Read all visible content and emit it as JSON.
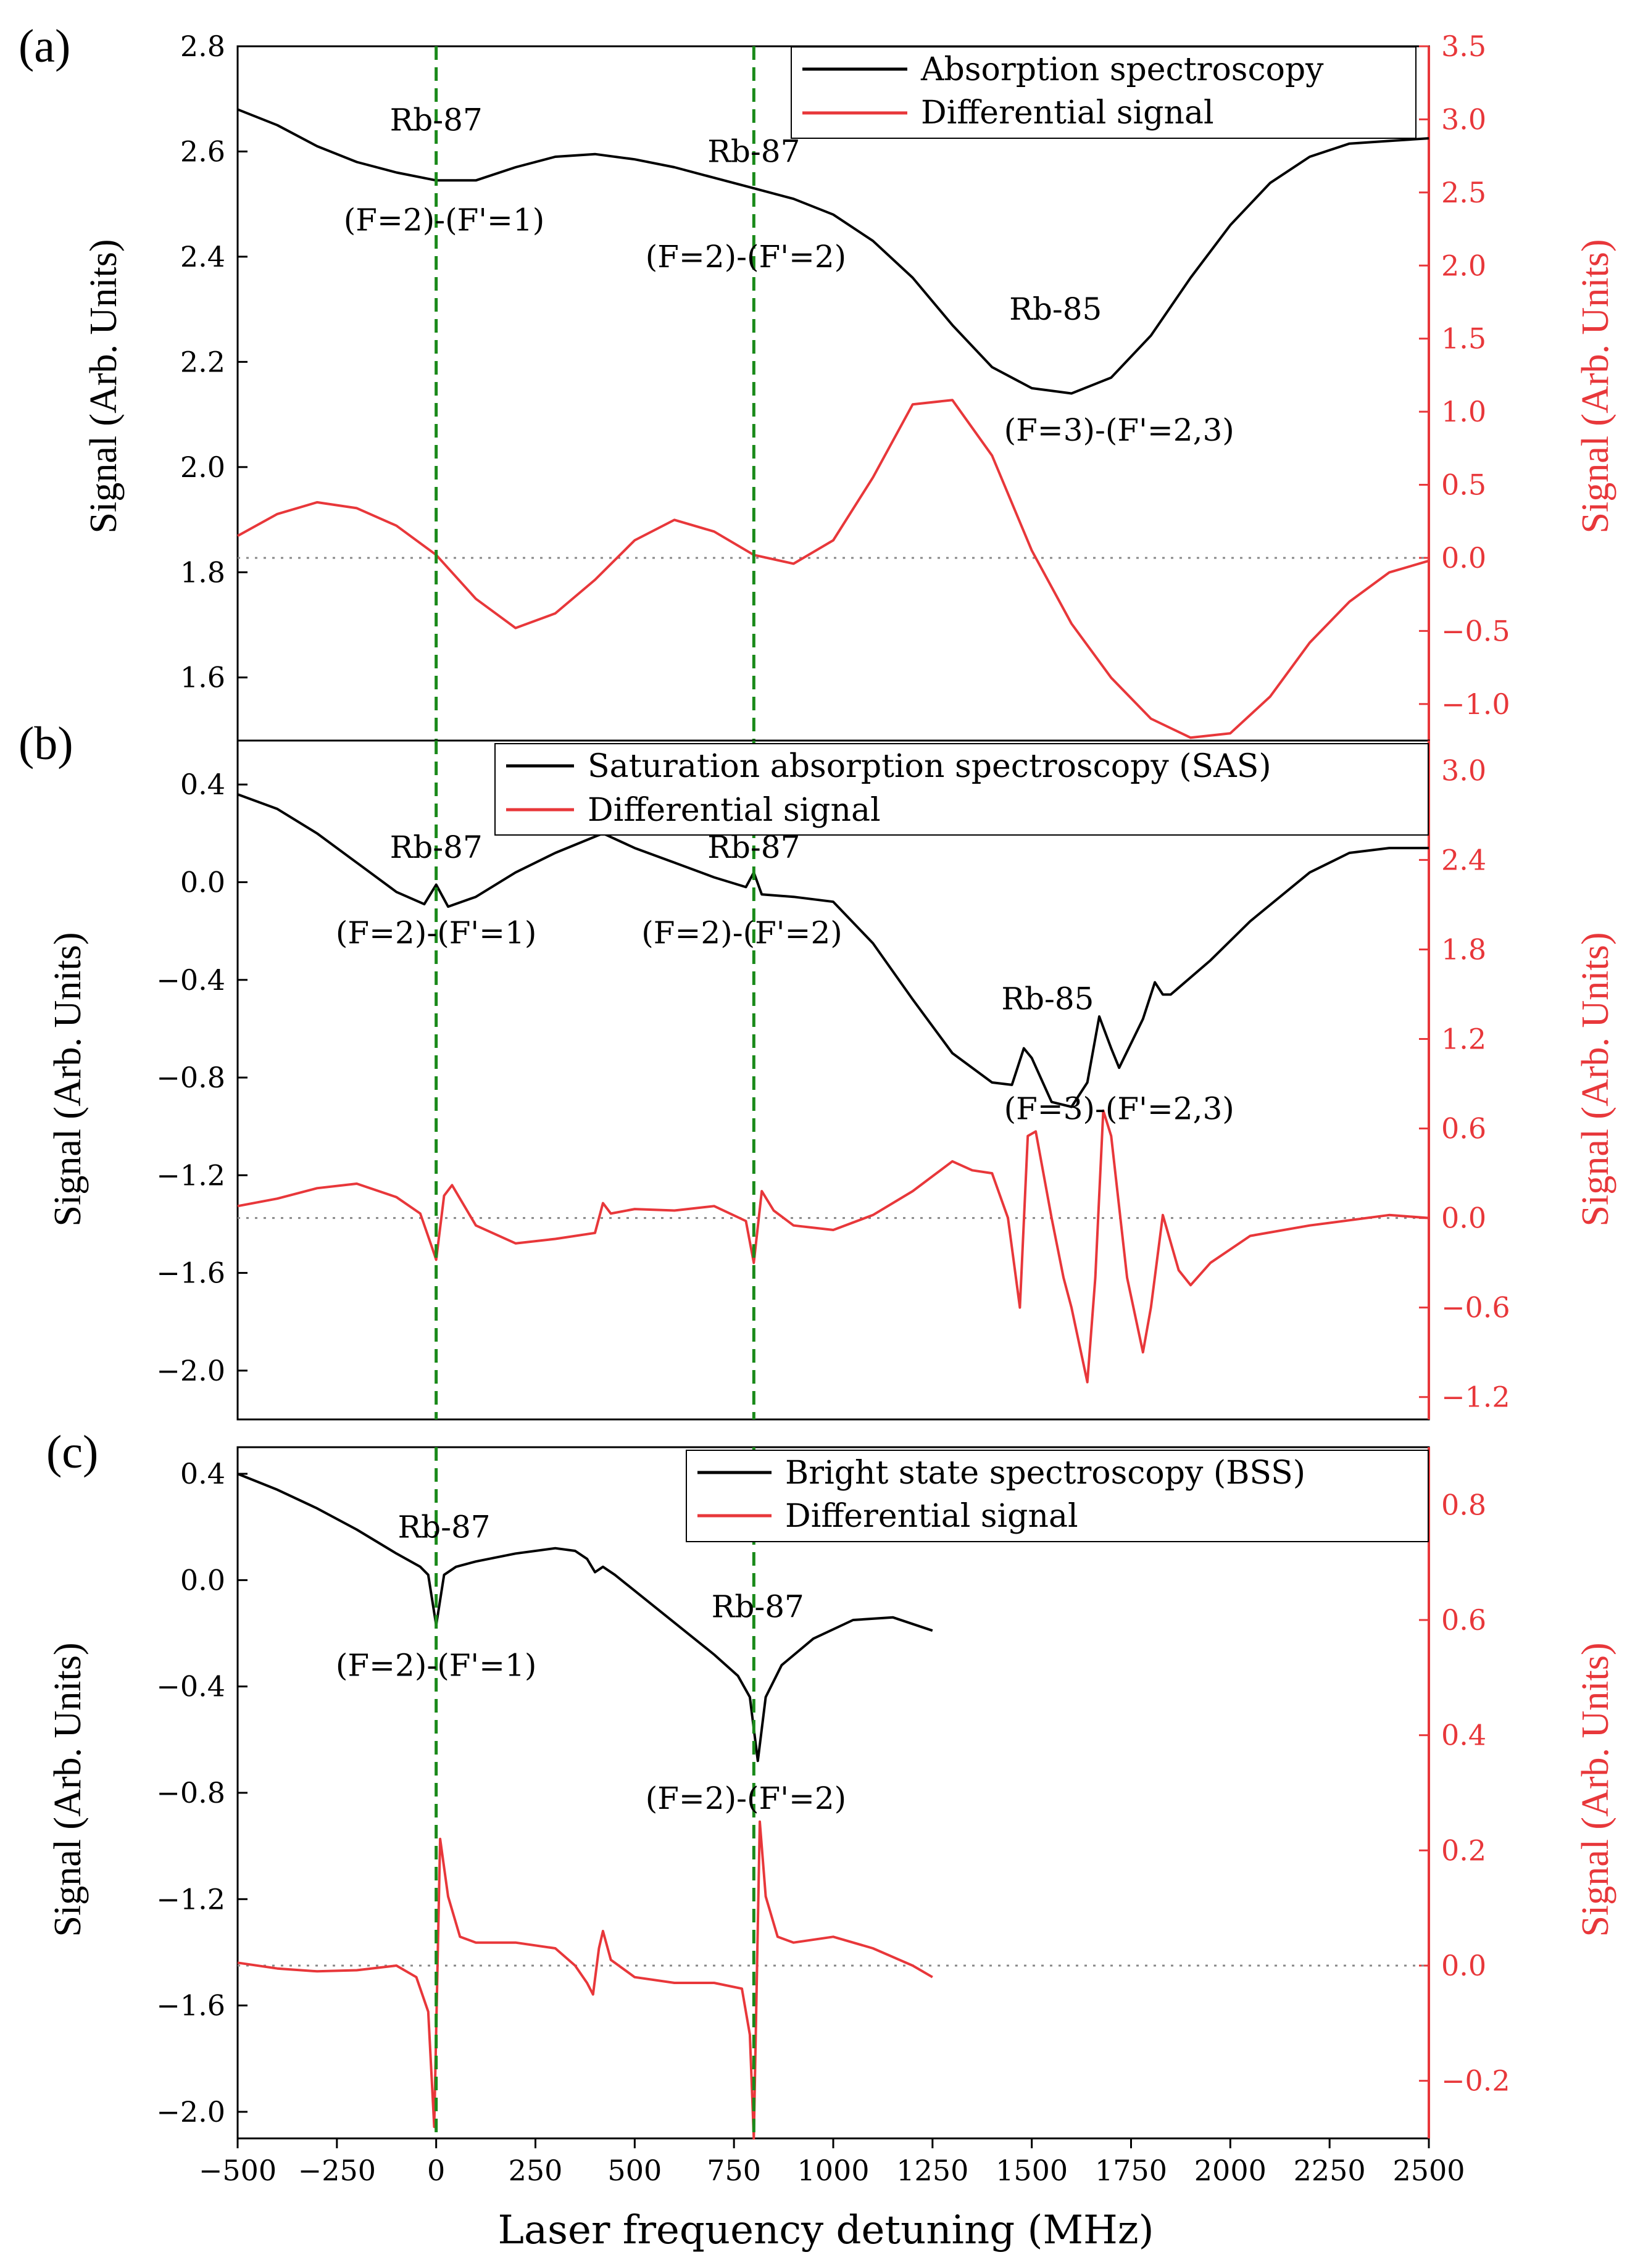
{
  "chart_data": {
    "type": "line",
    "xlabel": "Laser frequency detuning (MHz)",
    "xlim": [
      -500,
      2500
    ],
    "x_ticks": [
      -500,
      -250,
      0,
      250,
      500,
      750,
      1000,
      1250,
      1500,
      1750,
      2000,
      2250,
      2500
    ],
    "x_tick_labels": [
      "−500",
      "−250",
      "0",
      "250",
      "500",
      "750",
      "1000",
      "1250",
      "1500",
      "1750",
      "2000",
      "2250",
      "2500"
    ],
    "reference_lines_x": [
      0,
      800
    ],
    "colors": {
      "primary": "#000000",
      "differential": "#e8373a",
      "reference": "#1a8a1a",
      "zero": "#888888"
    },
    "panels": [
      {
        "label": "(a)",
        "ylabel_left": "Signal (Arb. Units)",
        "ylabel_right": "Signal (Arb. Units)",
        "ylim_left": [
          1.48,
          2.8
        ],
        "ylim_right": [
          -1.25,
          3.5
        ],
        "yticks_left": [
          1.6,
          1.8,
          2.0,
          2.2,
          2.4,
          2.6,
          2.8
        ],
        "yticks_left_labels": [
          "1.6",
          "1.8",
          "2.0",
          "2.2",
          "2.4",
          "2.6",
          "2.8"
        ],
        "yticks_right": [
          -1.0,
          -0.5,
          0.0,
          0.5,
          1.0,
          1.5,
          2.0,
          2.5,
          3.0,
          3.5
        ],
        "yticks_right_labels": [
          "−1.0",
          "−0.5",
          "0.0",
          "0.5",
          "1.0",
          "1.5",
          "2.0",
          "2.5",
          "3.0",
          "3.5"
        ],
        "legend": [
          "Absorption spectroscopy",
          "Differential signal"
        ],
        "annotations": [
          {
            "text": "Rb-87",
            "x": 0,
            "y": 2.64
          },
          {
            "text": "(F=2)-(F'=1)",
            "x": 20,
            "y": 2.45
          },
          {
            "text": "Rb-87",
            "x": 800,
            "y": 2.58
          },
          {
            "text": "(F=2)-(F'=2)",
            "x": 780,
            "y": 2.38
          },
          {
            "text": "Rb-85",
            "x": 1560,
            "y": 2.28
          },
          {
            "text": "(F=3)-(F'=2,3)",
            "x": 1720,
            "y": 2.05
          }
        ],
        "series": [
          {
            "name": "Absorption spectroscopy",
            "axis": "left",
            "color": "#000000",
            "x": [
              -500,
              -400,
              -300,
              -200,
              -100,
              0,
              100,
              200,
              300,
              400,
              500,
              600,
              700,
              800,
              900,
              1000,
              1100,
              1200,
              1300,
              1400,
              1500,
              1600,
              1700,
              1800,
              1900,
              2000,
              2100,
              2200,
              2300,
              2400,
              2500
            ],
            "y": [
              2.68,
              2.65,
              2.61,
              2.58,
              2.56,
              2.545,
              2.545,
              2.57,
              2.59,
              2.595,
              2.585,
              2.57,
              2.55,
              2.53,
              2.51,
              2.48,
              2.43,
              2.36,
              2.27,
              2.19,
              2.15,
              2.14,
              2.17,
              2.25,
              2.36,
              2.46,
              2.54,
              2.59,
              2.615,
              2.62,
              2.625
            ]
          },
          {
            "name": "Differential signal",
            "axis": "right",
            "color": "#e8373a",
            "x": [
              -500,
              -400,
              -300,
              -200,
              -100,
              0,
              100,
              200,
              300,
              400,
              500,
              600,
              700,
              800,
              900,
              1000,
              1100,
              1200,
              1300,
              1400,
              1500,
              1600,
              1700,
              1800,
              1900,
              2000,
              2100,
              2200,
              2300,
              2400,
              2500
            ],
            "y": [
              0.15,
              0.3,
              0.38,
              0.34,
              0.22,
              0.02,
              -0.28,
              -0.48,
              -0.38,
              -0.15,
              0.12,
              0.26,
              0.18,
              0.02,
              -0.04,
              0.12,
              0.55,
              1.05,
              1.08,
              0.7,
              0.05,
              -0.45,
              -0.82,
              -1.1,
              -1.23,
              -1.2,
              -0.95,
              -0.58,
              -0.3,
              -0.1,
              -0.02
            ]
          }
        ]
      },
      {
        "label": "(b)",
        "ylabel_left": "Signal (Arb. Units)",
        "ylabel_right": "Signal (Arb. Units)",
        "ylim_left": [
          -2.2,
          0.58
        ],
        "ylim_right": [
          -1.35,
          3.2
        ],
        "yticks_left": [
          -2.0,
          -1.6,
          -1.2,
          -0.8,
          -0.4,
          0.0,
          0.4
        ],
        "yticks_left_labels": [
          "−2.0",
          "−1.6",
          "−1.2",
          "−0.8",
          "−0.4",
          "0.0",
          "0.4"
        ],
        "yticks_right": [
          -1.2,
          -0.6,
          0.0,
          0.6,
          1.2,
          1.8,
          2.4,
          3.0
        ],
        "yticks_right_labels": [
          "−1.2",
          "−0.6",
          "0.0",
          "0.6",
          "1.2",
          "1.8",
          "2.4",
          "3.0"
        ],
        "legend": [
          "Saturation absorption spectroscopy (SAS)",
          "Differential signal"
        ],
        "annotations": [
          {
            "text": "Rb-87",
            "x": 0,
            "y": 0.1
          },
          {
            "text": "(F=2)-(F'=1)",
            "x": 0,
            "y": -0.25
          },
          {
            "text": "Rb-87",
            "x": 800,
            "y": 0.1
          },
          {
            "text": "(F=2)-(F'=2)",
            "x": 770,
            "y": -0.25
          },
          {
            "text": "Rb-85",
            "x": 1540,
            "y": -0.52
          },
          {
            "text": "(F=3)-(F'=2,3)",
            "x": 1720,
            "y": -0.97
          }
        ],
        "series": [
          {
            "name": "Saturation absorption spectroscopy (SAS)",
            "axis": "left",
            "color": "#000000",
            "x": [
              -500,
              -400,
              -300,
              -200,
              -100,
              -30,
              0,
              30,
              100,
              200,
              300,
              420,
              500,
              600,
              700,
              780,
              800,
              820,
              900,
              1000,
              1100,
              1200,
              1300,
              1400,
              1450,
              1480,
              1500,
              1550,
              1600,
              1640,
              1670,
              1700,
              1720,
              1780,
              1810,
              1830,
              1850,
              1950,
              2050,
              2200,
              2300,
              2400,
              2500
            ],
            "y": [
              0.36,
              0.3,
              0.2,
              0.08,
              -0.04,
              -0.09,
              -0.01,
              -0.1,
              -0.06,
              0.04,
              0.12,
              0.2,
              0.14,
              0.08,
              0.02,
              -0.02,
              0.04,
              -0.05,
              -0.06,
              -0.08,
              -0.25,
              -0.48,
              -0.7,
              -0.82,
              -0.83,
              -0.68,
              -0.72,
              -0.9,
              -0.92,
              -0.82,
              -0.55,
              -0.68,
              -0.76,
              -0.56,
              -0.41,
              -0.46,
              -0.46,
              -0.32,
              -0.16,
              0.04,
              0.12,
              0.14,
              0.14
            ]
          },
          {
            "name": "Differential signal",
            "axis": "right",
            "color": "#e8373a",
            "x": [
              -500,
              -400,
              -300,
              -200,
              -100,
              -40,
              -10,
              0,
              20,
              40,
              100,
              200,
              300,
              400,
              420,
              440,
              500,
              600,
              700,
              780,
              800,
              820,
              850,
              900,
              1000,
              1100,
              1200,
              1300,
              1350,
              1400,
              1440,
              1470,
              1490,
              1510,
              1550,
              1580,
              1600,
              1640,
              1660,
              1680,
              1700,
              1740,
              1780,
              1800,
              1830,
              1870,
              1900,
              1950,
              2050,
              2200,
              2400,
              2500
            ],
            "y": [
              0.08,
              0.13,
              0.2,
              0.23,
              0.14,
              0.03,
              -0.2,
              -0.28,
              0.15,
              0.22,
              -0.05,
              -0.17,
              -0.14,
              -0.1,
              0.1,
              0.03,
              0.06,
              0.05,
              0.08,
              -0.02,
              -0.3,
              0.18,
              0.05,
              -0.05,
              -0.08,
              0.02,
              0.18,
              0.38,
              0.32,
              0.3,
              0.0,
              -0.6,
              0.55,
              0.58,
              0.0,
              -0.4,
              -0.6,
              -1.1,
              -0.4,
              0.72,
              0.55,
              -0.4,
              -0.9,
              -0.6,
              0.02,
              -0.35,
              -0.45,
              -0.3,
              -0.12,
              -0.05,
              0.02,
              0.0
            ]
          }
        ]
      },
      {
        "label": "(c)",
        "ylabel_left": "Signal (Arb. Units)",
        "ylabel_right": "Signal (Arb. Units)",
        "ylim_left": [
          -2.1,
          0.5
        ],
        "ylim_right": [
          -0.3,
          0.9
        ],
        "yticks_left": [
          -2.0,
          -1.6,
          -1.2,
          -0.8,
          -0.4,
          0.0,
          0.4
        ],
        "yticks_left_labels": [
          "−2.0",
          "−1.6",
          "−1.2",
          "−0.8",
          "−0.4",
          "0.0",
          "0.4"
        ],
        "yticks_right": [
          -0.2,
          0.0,
          0.2,
          0.4,
          0.6,
          0.8
        ],
        "yticks_right_labels": [
          "−0.2",
          "0.0",
          "0.2",
          "0.4",
          "0.6",
          "0.8"
        ],
        "legend": [
          "Bright state spectroscopy (BSS)",
          "Differential signal"
        ],
        "annotations": [
          {
            "text": "Rb-87",
            "x": 20,
            "y": 0.16
          },
          {
            "text": "(F=2)-(F'=1)",
            "x": 0,
            "y": -0.36
          },
          {
            "text": "Rb-87",
            "x": 810,
            "y": -0.14
          },
          {
            "text": "(F=2)-(F'=2)",
            "x": 780,
            "y": -0.86
          }
        ],
        "series": [
          {
            "name": "Bright state spectroscopy (BSS)",
            "axis": "left",
            "color": "#000000",
            "x": [
              -500,
              -400,
              -300,
              -200,
              -100,
              -40,
              -20,
              0,
              20,
              50,
              100,
              200,
              300,
              350,
              380,
              400,
              420,
              450,
              500,
              600,
              700,
              760,
              790,
              810,
              830,
              870,
              950,
              1050,
              1150,
              1250
            ],
            "y": [
              0.4,
              0.34,
              0.27,
              0.19,
              0.1,
              0.05,
              0.02,
              -0.17,
              0.02,
              0.05,
              0.07,
              0.1,
              0.12,
              0.11,
              0.08,
              0.03,
              0.05,
              0.02,
              -0.04,
              -0.16,
              -0.28,
              -0.36,
              -0.44,
              -0.68,
              -0.44,
              -0.32,
              -0.22,
              -0.15,
              -0.14,
              -0.19
            ]
          },
          {
            "name": "Differential signal",
            "axis": "right",
            "color": "#e8373a",
            "x": [
              -500,
              -400,
              -300,
              -200,
              -100,
              -50,
              -20,
              -5,
              10,
              30,
              60,
              100,
              200,
              300,
              350,
              380,
              395,
              410,
              420,
              440,
              500,
              600,
              700,
              770,
              790,
              800,
              815,
              830,
              860,
              900,
              1000,
              1100,
              1200,
              1250
            ],
            "y": [
              0.005,
              -0.005,
              -0.01,
              -0.008,
              0.0,
              -0.02,
              -0.08,
              -0.28,
              0.22,
              0.12,
              0.05,
              0.04,
              0.04,
              0.03,
              0.0,
              -0.03,
              -0.05,
              0.03,
              0.06,
              0.01,
              -0.02,
              -0.03,
              -0.03,
              -0.04,
              -0.12,
              -0.3,
              0.25,
              0.12,
              0.05,
              0.04,
              0.05,
              0.03,
              0.0,
              -0.02
            ]
          }
        ]
      }
    ]
  }
}
